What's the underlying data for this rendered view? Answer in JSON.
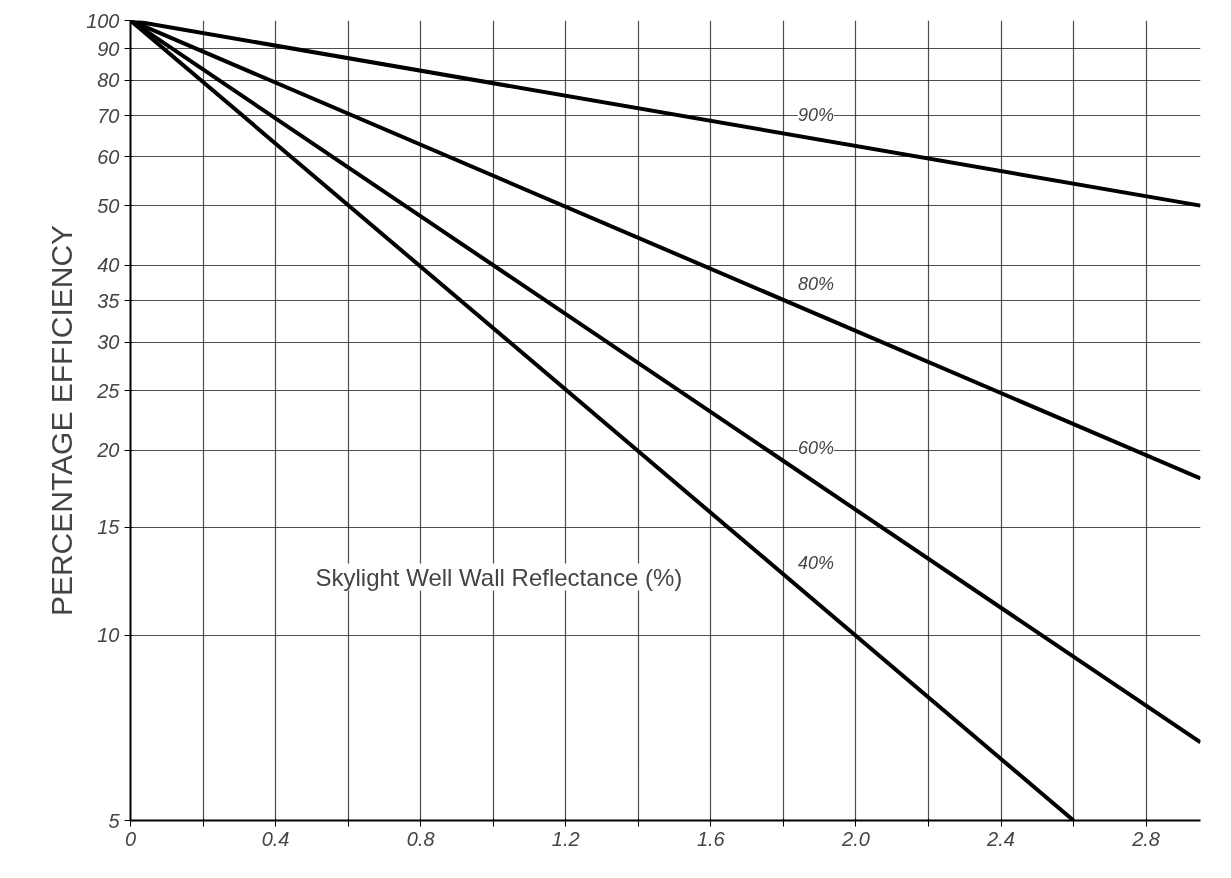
{
  "chart_data": {
    "type": "line",
    "ylabel": "PERCENTAGE EFFICIENCY",
    "x": [
      0,
      2.95
    ],
    "series": [
      {
        "name": "90%",
        "color": "#000000",
        "values": [
          100,
          50
        ]
      },
      {
        "name": "80%",
        "color": "#000000",
        "values": [
          100,
          18
        ]
      },
      {
        "name": "60%",
        "color": "#000000",
        "values": [
          100,
          6.7
        ]
      },
      {
        "name": "40%",
        "color": "#000000",
        "x": [
          0,
          2.6
        ],
        "values": [
          100,
          5
        ]
      }
    ],
    "annotations": [
      "Skylight Well Wall Reflectance (%)"
    ],
    "log": "y",
    "xlim": [
      0,
      2.95
    ],
    "ylim": [
      5,
      100
    ],
    "xticks": [
      0,
      {
        "value": 0.2,
        "label": null
      },
      0.4,
      {
        "value": 0.6,
        "label": null
      },
      0.8,
      {
        "value": 1.0,
        "label": null
      },
      1.2,
      {
        "value": 1.4,
        "label": null
      },
      1.6,
      {
        "value": 1.8,
        "label": null
      },
      {
        "value": 2.0,
        "label": "2.0"
      },
      {
        "value": 2.2,
        "label": null
      },
      2.4,
      {
        "value": 2.6,
        "label": null
      },
      2.8
    ],
    "yticks": [
      5,
      10,
      15,
      20,
      25,
      30,
      35,
      40,
      50,
      60,
      70,
      80,
      90,
      100
    ],
    "grid": true,
    "marker": "none",
    "line_style": "solid"
  }
}
